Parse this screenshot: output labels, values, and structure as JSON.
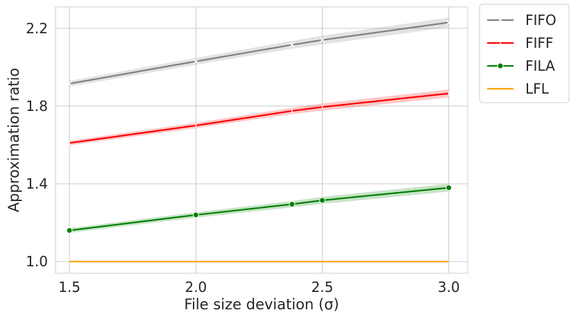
{
  "chart_data": {
    "type": "line",
    "xlabel": "File size deviation (σ)",
    "ylabel": "Approximation ratio",
    "x_ticks": [
      "1.5",
      "2.0",
      "2.5",
      "3.0"
    ],
    "y_ticks": [
      "1.0",
      "1.4",
      "1.8",
      "2.2"
    ],
    "xlim": [
      1.445,
      3.075
    ],
    "ylim": [
      0.94,
      2.31
    ],
    "grid": true,
    "legend_position": "outside-right-top",
    "series": [
      {
        "name": "FIFO",
        "color": "#808080",
        "marker": "x",
        "x": [
          1.5,
          2.0,
          2.38,
          2.5,
          3.0
        ],
        "y": [
          1.915,
          2.03,
          2.115,
          2.14,
          2.23
        ],
        "ci": 0.025
      },
      {
        "name": "FIFF",
        "color": "#ff0000",
        "marker": "tick",
        "x": [
          1.5,
          2.0,
          2.38,
          2.5,
          3.0
        ],
        "y": [
          1.61,
          1.7,
          1.775,
          1.795,
          1.865
        ],
        "ci": 0.02
      },
      {
        "name": "FILA",
        "color": "#008000",
        "marker": "circle",
        "x": [
          1.5,
          2.0,
          2.38,
          2.5,
          3.0
        ],
        "y": [
          1.16,
          1.24,
          1.295,
          1.315,
          1.38
        ],
        "ci": 0.02
      },
      {
        "name": "LFL",
        "color": "#ffa500",
        "marker": "none",
        "x": [
          1.5,
          2.0,
          2.38,
          2.5,
          3.0
        ],
        "y": [
          1.0,
          1.0,
          1.0,
          1.0,
          1.0
        ],
        "ci": 0
      }
    ]
  }
}
